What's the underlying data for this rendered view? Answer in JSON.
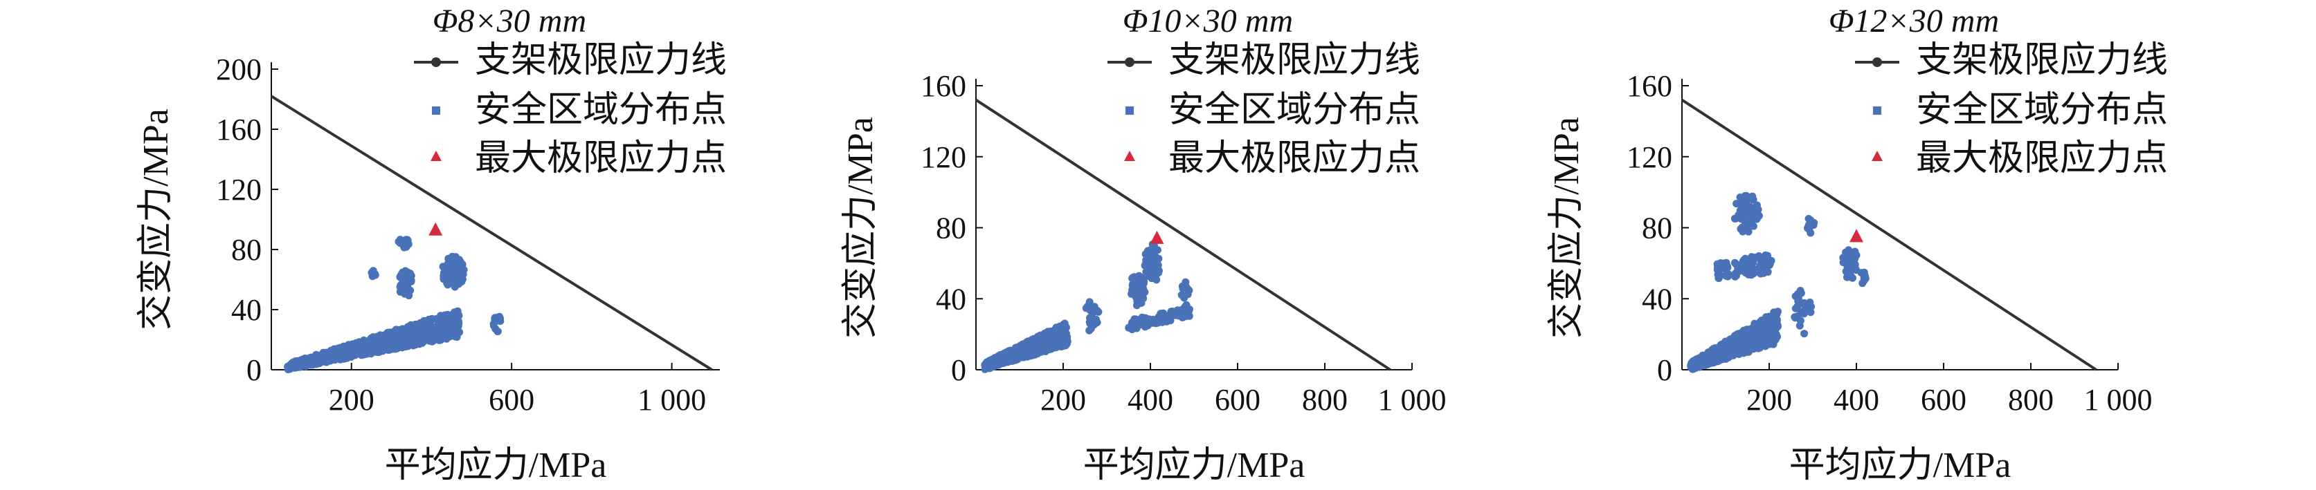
{
  "figure": {
    "colors": {
      "line": "#333333",
      "points": "#4a72b8",
      "peak": "#d42a3a",
      "axis": "#111111"
    }
  },
  "chart_data": [
    {
      "type": "scatter",
      "title": "Φ8×30 mm",
      "xlabel": "平均应力/MPa",
      "ylabel": "交变应力/MPa",
      "xlim": [
        0,
        1120
      ],
      "ylim": [
        0,
        200
      ],
      "xticks": [
        {
          "value": 200,
          "label": "200"
        },
        {
          "value": 600,
          "label": "600"
        },
        {
          "value": 1000,
          "label": "1 000"
        }
      ],
      "yticks": [
        {
          "value": 0,
          "label": "0"
        },
        {
          "value": 40,
          "label": "40"
        },
        {
          "value": 80,
          "label": "80"
        },
        {
          "value": 120,
          "label": "120"
        },
        {
          "value": 160,
          "label": "160"
        },
        {
          "value": 200,
          "label": "200"
        }
      ],
      "legend": [
        "支架极限应力线",
        "安全区域分布点",
        "最大极限应力点"
      ],
      "limit_line": {
        "x": [
          0,
          1100
        ],
        "y": [
          182,
          0
        ]
      },
      "peak_point": {
        "x": 410,
        "y": 93
      },
      "point_regions": [
        {
          "shape": "band",
          "x_start": 40,
          "x_end": 470,
          "y_low_start": 0,
          "y_low_end": 22,
          "y_high_start": 4,
          "y_high_end": 40,
          "count": 900
        },
        {
          "shape": "cluster",
          "cx": 455,
          "cy": 65,
          "rx": 28,
          "ry": 11,
          "count": 70
        },
        {
          "shape": "cluster",
          "cx": 335,
          "cy": 58,
          "rx": 18,
          "ry": 10,
          "count": 40
        },
        {
          "shape": "cluster",
          "cx": 330,
          "cy": 84,
          "rx": 14,
          "ry": 4,
          "count": 16
        },
        {
          "shape": "cluster",
          "cx": 565,
          "cy": 31,
          "rx": 10,
          "ry": 6,
          "count": 14
        },
        {
          "shape": "cluster",
          "cx": 255,
          "cy": 63,
          "rx": 7,
          "ry": 3,
          "count": 6
        }
      ]
    },
    {
      "type": "scatter",
      "title": "Φ10×30 mm",
      "xlabel": "平均应力/MPa",
      "ylabel": "交变应力/MPa",
      "xlim": [
        0,
        1000
      ],
      "ylim": [
        0,
        160
      ],
      "xticks": [
        {
          "value": 200,
          "label": "200"
        },
        {
          "value": 400,
          "label": "400"
        },
        {
          "value": 600,
          "label": "600"
        },
        {
          "value": 800,
          "label": "800"
        },
        {
          "value": 1000,
          "label": "1 000"
        }
      ],
      "yticks": [
        {
          "value": 0,
          "label": "0"
        },
        {
          "value": 40,
          "label": "40"
        },
        {
          "value": 80,
          "label": "80"
        },
        {
          "value": 120,
          "label": "120"
        },
        {
          "value": 160,
          "label": "160"
        }
      ],
      "legend": [
        "支架极限应力线",
        "安全区域分布点",
        "最大极限应力点"
      ],
      "limit_line": {
        "x": [
          0,
          950
        ],
        "y": [
          152,
          0
        ]
      },
      "peak_point": {
        "x": 415,
        "y": 74
      },
      "point_regions": [
        {
          "shape": "band",
          "x_start": 20,
          "x_end": 210,
          "y_low_start": 0,
          "y_low_end": 14,
          "y_high_start": 4,
          "y_high_end": 27,
          "count": 650
        },
        {
          "shape": "band",
          "x_start": 350,
          "x_end": 490,
          "y_low_start": 22,
          "y_low_end": 30,
          "y_high_start": 28,
          "y_high_end": 35,
          "count": 90
        },
        {
          "shape": "cluster",
          "cx": 405,
          "cy": 60,
          "rx": 18,
          "ry": 11,
          "count": 45
        },
        {
          "shape": "cluster",
          "cx": 370,
          "cy": 45,
          "rx": 18,
          "ry": 9,
          "count": 40
        },
        {
          "shape": "cluster",
          "cx": 265,
          "cy": 30,
          "rx": 18,
          "ry": 9,
          "count": 22
        },
        {
          "shape": "cluster",
          "cx": 480,
          "cy": 42,
          "rx": 10,
          "ry": 8,
          "count": 14
        }
      ]
    },
    {
      "type": "scatter",
      "title": "Φ12×30 mm",
      "xlabel": "平均应力/MPa",
      "ylabel": "交变应力/MPa",
      "xlim": [
        0,
        1000
      ],
      "ylim": [
        0,
        160
      ],
      "xticks": [
        {
          "value": 200,
          "label": "200"
        },
        {
          "value": 400,
          "label": "400"
        },
        {
          "value": 600,
          "label": "600"
        },
        {
          "value": 800,
          "label": "800"
        },
        {
          "value": 1000,
          "label": "1 000"
        }
      ],
      "yticks": [
        {
          "value": 0,
          "label": "0"
        },
        {
          "value": 40,
          "label": "40"
        },
        {
          "value": 80,
          "label": "80"
        },
        {
          "value": 120,
          "label": "120"
        },
        {
          "value": 160,
          "label": "160"
        }
      ],
      "legend": [
        "支架极限应力线",
        "安全区域分布点",
        "最大极限应力点"
      ],
      "limit_line": {
        "x": [
          0,
          950
        ],
        "y": [
          152,
          0
        ]
      },
      "peak_point": {
        "x": 400,
        "y": 75
      },
      "point_regions": [
        {
          "shape": "band",
          "x_start": 20,
          "x_end": 220,
          "y_low_start": 0,
          "y_low_end": 15,
          "y_high_start": 4,
          "y_high_end": 34,
          "count": 650
        },
        {
          "shape": "band",
          "x_start": 80,
          "x_end": 210,
          "y_low_start": 50,
          "y_low_end": 55,
          "y_high_start": 60,
          "y_high_end": 66,
          "count": 80
        },
        {
          "shape": "cluster",
          "cx": 150,
          "cy": 88,
          "rx": 30,
          "ry": 11,
          "count": 60
        },
        {
          "shape": "cluster",
          "cx": 385,
          "cy": 60,
          "rx": 18,
          "ry": 9,
          "count": 40
        },
        {
          "shape": "cluster",
          "cx": 275,
          "cy": 32,
          "rx": 22,
          "ry": 13,
          "count": 28
        },
        {
          "shape": "cluster",
          "cx": 295,
          "cy": 82,
          "rx": 8,
          "ry": 5,
          "count": 12
        },
        {
          "shape": "cluster",
          "cx": 415,
          "cy": 50,
          "rx": 8,
          "ry": 6,
          "count": 8
        }
      ]
    }
  ]
}
